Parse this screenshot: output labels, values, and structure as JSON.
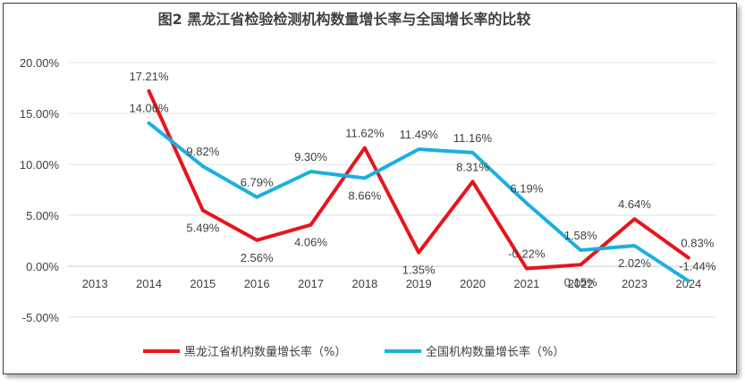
{
  "chart_data": {
    "type": "line",
    "title": "图2 黑龙江省检验检测机构数量增长率与全国增长率的比较",
    "xlabel": "",
    "ylabel": "",
    "categories": [
      "2013",
      "2014",
      "2015",
      "2016",
      "2017",
      "2018",
      "2019",
      "2020",
      "2021",
      "2022",
      "2023",
      "2024"
    ],
    "ylim": [
      -5,
      20
    ],
    "yticks": [
      "20.00%",
      "15.00%",
      "10.00%",
      "5.00%",
      "0.00%",
      "-5.00%"
    ],
    "ytick_values": [
      20,
      15,
      10,
      5,
      0,
      -5
    ],
    "grid": true,
    "legend_position": "bottom",
    "series": [
      {
        "name": "黑龙江省机构数量增长率（%）",
        "color": "#e8141c",
        "values": [
          null,
          17.21,
          5.49,
          2.56,
          4.06,
          11.62,
          1.35,
          8.31,
          -0.22,
          0.15,
          4.64,
          0.83
        ],
        "labels": [
          null,
          "17.21%",
          "5.49%",
          "2.56%",
          "4.06%",
          "11.62%",
          "1.35%",
          "8.31%",
          "-0.22%",
          "0.15%",
          "4.64%",
          "0.83%"
        ]
      },
      {
        "name": "全国机构数量增长率（%）",
        "color": "#1ab0e0",
        "values": [
          null,
          14.06,
          9.82,
          6.79,
          9.3,
          8.66,
          11.49,
          11.16,
          6.19,
          1.58,
          2.02,
          -1.44
        ],
        "labels": [
          null,
          "14.06%",
          "9.82%",
          "6.79%",
          "9.30%",
          "8.66%",
          "11.49%",
          "11.16%",
          "6.19%",
          "1.58%",
          "2.02%",
          "-1.44%"
        ]
      }
    ]
  }
}
